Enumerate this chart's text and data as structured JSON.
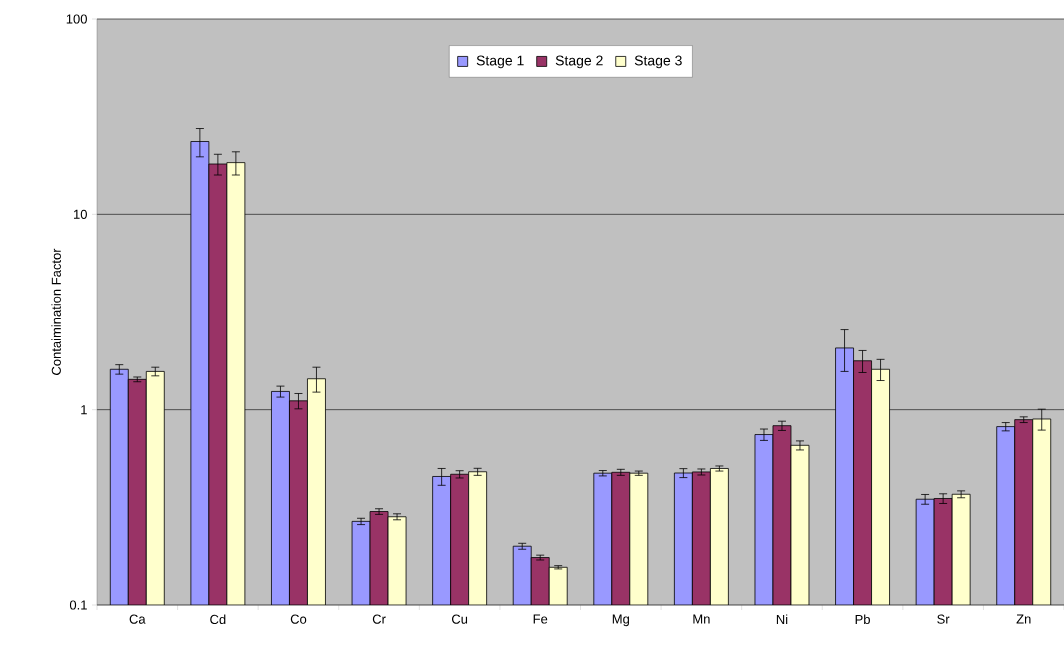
{
  "chart_data": {
    "type": "bar",
    "ylabel": "Contaimination Factor",
    "categories": [
      "Ca",
      "Cd",
      "Co",
      "Cr",
      "Cu",
      "Fe",
      "Mg",
      "Mn",
      "Ni",
      "Pb",
      "Sr",
      "Zn"
    ],
    "series": [
      {
        "name": "Stage 1",
        "color": "#9999ff",
        "values": [
          1.61,
          23.6,
          1.24,
          0.268,
          0.455,
          0.2,
          0.473,
          0.474,
          0.746,
          2.07,
          0.348,
          0.819
        ],
        "errors": [
          0.09,
          3.9,
          0.08,
          0.01,
          0.045,
          0.007,
          0.015,
          0.025,
          0.05,
          0.5,
          0.02,
          0.04
        ]
      },
      {
        "name": "Stage 2",
        "color": "#993366",
        "values": [
          1.43,
          18.1,
          1.11,
          0.301,
          0.467,
          0.175,
          0.478,
          0.48,
          0.828,
          1.78,
          0.351,
          0.889
        ],
        "errors": [
          0.04,
          2.2,
          0.1,
          0.01,
          0.02,
          0.005,
          0.017,
          0.017,
          0.045,
          0.23,
          0.02,
          0.03
        ]
      },
      {
        "name": "Stage 3",
        "color": "#ffffcc",
        "values": [
          1.57,
          18.4,
          1.44,
          0.283,
          0.481,
          0.156,
          0.473,
          0.5,
          0.657,
          1.61,
          0.369,
          0.896
        ],
        "errors": [
          0.08,
          2.5,
          0.21,
          0.01,
          0.02,
          0.003,
          0.012,
          0.015,
          0.035,
          0.2,
          0.015,
          0.11
        ]
      }
    ],
    "ylim": [
      0.1,
      100
    ],
    "yticks": [
      0.1,
      1,
      10,
      100
    ],
    "log": "y",
    "grid": "y",
    "legend": "top"
  }
}
